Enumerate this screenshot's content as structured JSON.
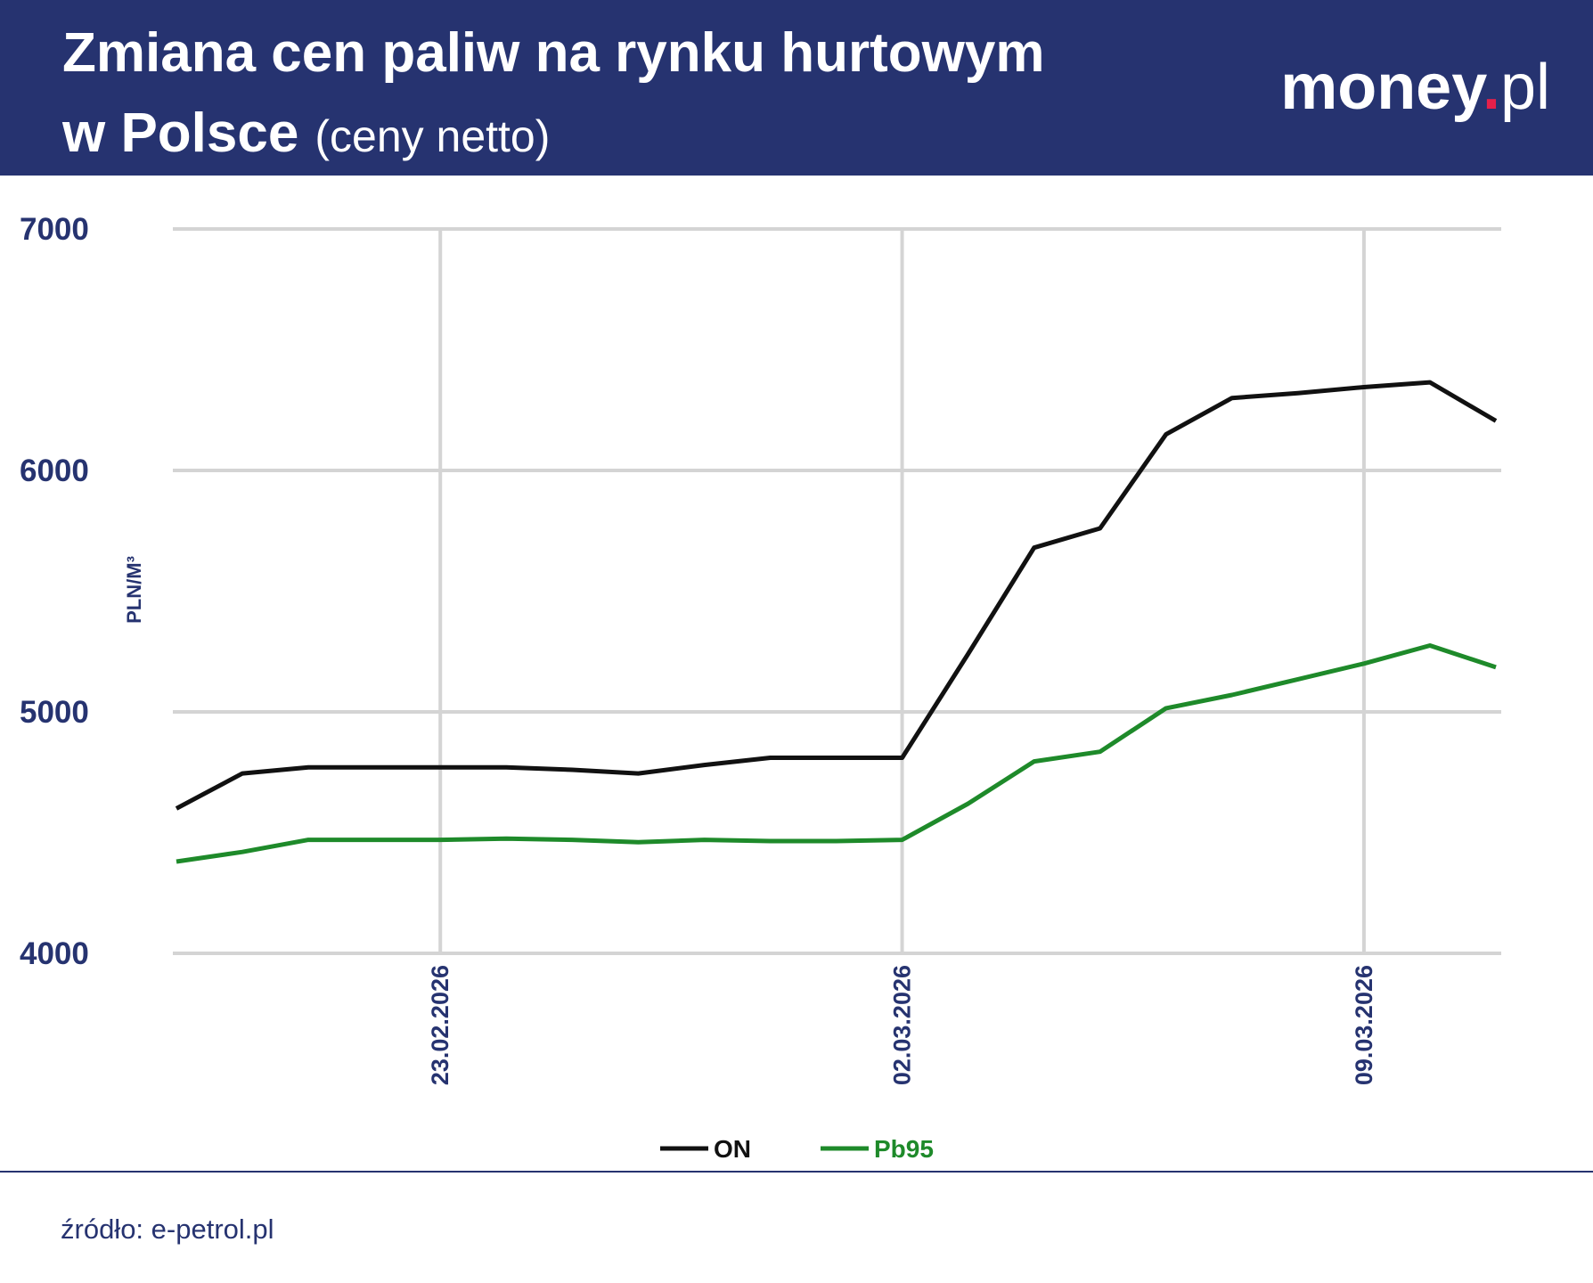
{
  "header": {
    "title_lines": [
      "Zmiana cen paliw na rynku hurtowym",
      "w Polsce"
    ],
    "subtitle": "(ceny netto)",
    "logo": [
      "money",
      ".",
      "pl"
    ]
  },
  "chart_data": {
    "type": "line",
    "y_label": "PLN/M³",
    "x": [
      "19.02.2026",
      "20.02.2026",
      "21.02.2026",
      "22.02.2026",
      "23.02.2026",
      "24.02.2026",
      "25.02.2026",
      "26.02.2026",
      "27.02.2026",
      "28.02.2026",
      "01.03.2026",
      "02.03.2026",
      "03.03.2026",
      "04.03.2026",
      "05.03.2026",
      "06.03.2026",
      "07.03.2026",
      "08.03.2026",
      "09.03.2026",
      "10.03.2026",
      "11.03.2026"
    ],
    "series": [
      {
        "name": "ON",
        "color": "#111111",
        "values": [
          4600,
          4745,
          4770,
          4770,
          4770,
          4770,
          4760,
          4745,
          4780,
          4810,
          4810,
          4810,
          5240,
          5680,
          5760,
          6150,
          6300,
          6320,
          6345,
          6365,
          6205
        ]
      },
      {
        "name": "Pb95",
        "color": "#1e8a2a",
        "values": [
          4380,
          4420,
          4470,
          4470,
          4470,
          4475,
          4470,
          4460,
          4470,
          4465,
          4465,
          4470,
          4620,
          4795,
          4835,
          5015,
          5070,
          5135,
          5200,
          5275,
          5185
        ]
      }
    ],
    "xlim": [
      "19.02.2026",
      "11.03.2026"
    ],
    "xticks": [
      "23.02.2026",
      "02.03.2026",
      "09.03.2026"
    ],
    "ylim": [
      4000,
      7000
    ],
    "yticks": [
      4000,
      5000,
      6000,
      7000
    ],
    "grid": true,
    "legend": "bottom"
  },
  "footer": {
    "source": "źródło: e-petrol.pl"
  }
}
